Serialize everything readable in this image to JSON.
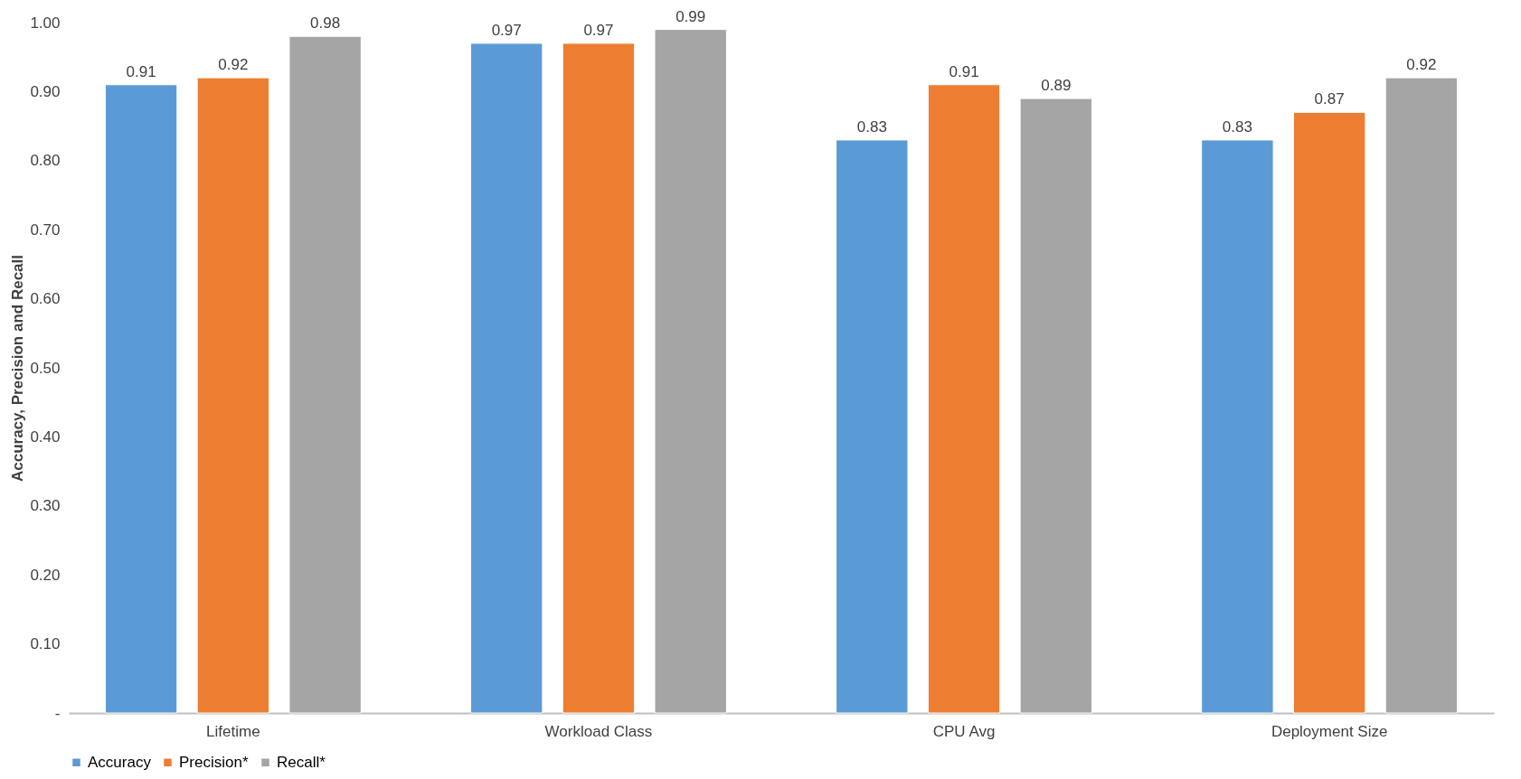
{
  "chart_data": {
    "type": "bar",
    "ylabel": "Accuracy, Precision and Recall",
    "categories": [
      "Lifetime",
      "Workload Class",
      "CPU Avg",
      "Deployment Size"
    ],
    "series": [
      {
        "name": "Accuracy",
        "color": "#5b9bd5",
        "values": [
          0.91,
          0.97,
          0.83,
          0.83
        ]
      },
      {
        "name": "Precision*",
        "color": "#ed7d31",
        "values": [
          0.92,
          0.97,
          0.91,
          0.87
        ]
      },
      {
        "name": "Recall*",
        "color": "#a5a5a5",
        "values": [
          0.98,
          0.99,
          0.89,
          0.92
        ]
      }
    ],
    "ylim": [
      0,
      1.0
    ],
    "yticks": [
      {
        "value": 0,
        "label": "-"
      },
      {
        "value": 0.1,
        "label": "0.10"
      },
      {
        "value": 0.2,
        "label": "0.20"
      },
      {
        "value": 0.3,
        "label": "0.30"
      },
      {
        "value": 0.4,
        "label": "0.40"
      },
      {
        "value": 0.5,
        "label": "0.50"
      },
      {
        "value": 0.6,
        "label": "0.60"
      },
      {
        "value": 0.7,
        "label": "0.70"
      },
      {
        "value": 0.8,
        "label": "0.80"
      },
      {
        "value": 0.9,
        "label": "0.90"
      },
      {
        "value": 1.0,
        "label": "1.00"
      }
    ],
    "grid": false,
    "legend": "bottom",
    "data_labels": true
  }
}
